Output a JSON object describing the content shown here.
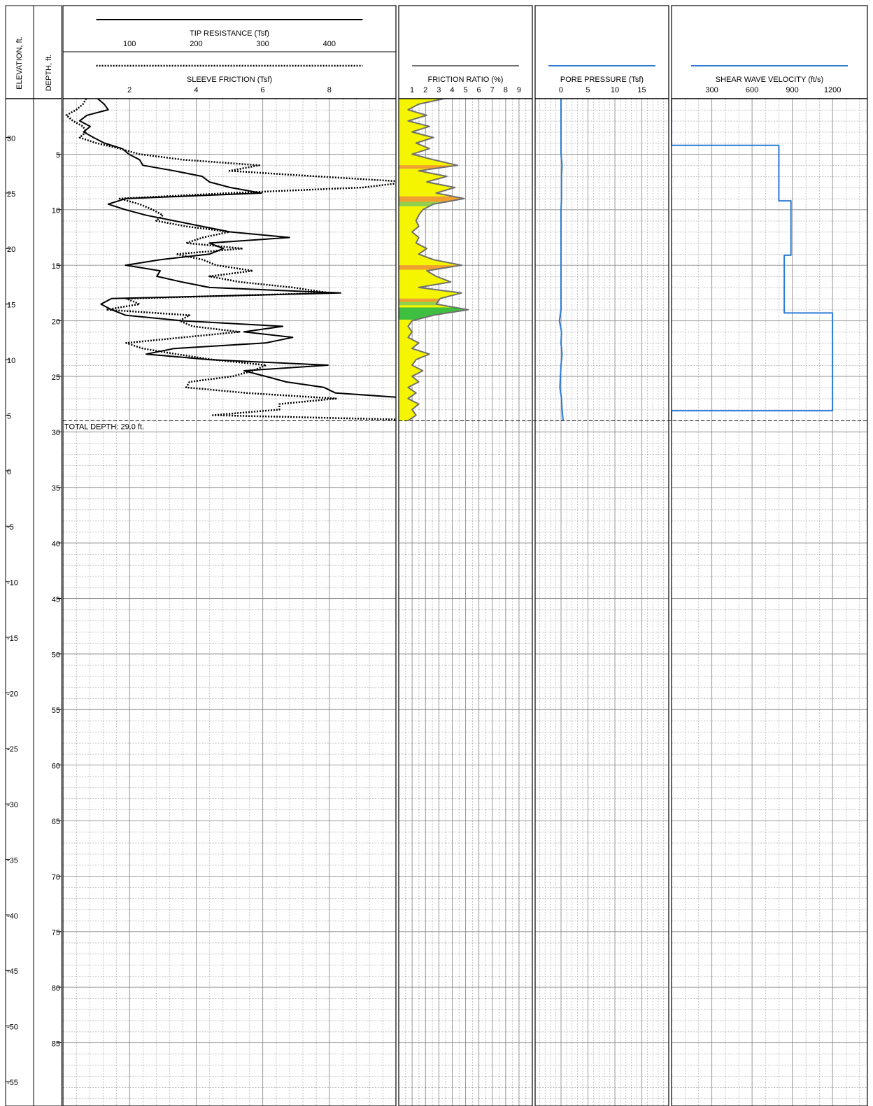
{
  "depth_axis": {
    "label": "DEPTH, ft.",
    "lim": [
      0,
      90.7
    ],
    "ticks": [
      5,
      10,
      15,
      20,
      25,
      30,
      35,
      40,
      45,
      50,
      55,
      60,
      65,
      70,
      75,
      80,
      85
    ]
  },
  "elevation_axis": {
    "label": "ELEVATION, ft.",
    "lim": [
      33.5,
      -57.2
    ],
    "ticks": [
      30,
      25,
      20,
      15,
      10,
      5,
      0,
      -5,
      -10,
      -15,
      -20,
      -25,
      -30,
      -35,
      -40,
      -45,
      -50,
      -55
    ]
  },
  "total_depth_label": "TOTAL DEPTH: 29.0 ft.",
  "total_depth": 29.0,
  "chart_data": [
    {
      "type": "line",
      "series": [
        {
          "name": "TIP RESISTANCE (Tsf)",
          "color": "#000000",
          "dash": "solid",
          "xlim": [
            0,
            500
          ],
          "xticks": [
            100,
            200,
            300,
            400
          ],
          "depth": [
            0,
            0.5,
            1,
            1.5,
            2,
            2.5,
            3,
            3.5,
            4,
            4.5,
            5,
            5.5,
            6,
            6.5,
            7,
            7.5,
            8,
            8.5,
            9,
            9.5,
            10,
            10.5,
            11,
            11.5,
            12,
            12.5,
            13,
            13.5,
            14,
            14.5,
            15,
            15.5,
            16,
            16.5,
            17,
            17.5,
            18,
            18.5,
            19,
            19.5,
            20,
            20.5,
            21,
            21.5,
            22,
            22.5,
            23,
            23.5,
            24,
            24.5,
            25,
            25.5,
            26,
            26.5,
            27,
            27.5,
            28,
            28.5,
            29
          ],
          "values": [
            52,
            62,
            68,
            36,
            25,
            41,
            31,
            46,
            62,
            89,
            99,
            115,
            120,
            167,
            209,
            220,
            251,
            298,
            94,
            68,
            94,
            125,
            167,
            209,
            251,
            340,
            220,
            241,
            220,
            146,
            94,
            146,
            141,
            178,
            220,
            417,
            73,
            57,
            73,
            94,
            178,
            330,
            272,
            345,
            304,
            167,
            125,
            220,
            398,
            272,
            304,
            335,
            392,
            409,
            530,
            560,
            540,
            520,
            510
          ]
        },
        {
          "name": "SLEEVE FRICTION (Tsf)",
          "color": "#000000",
          "dash": "dotted",
          "xlim": [
            0,
            10
          ],
          "xticks": [
            2,
            4,
            6,
            8
          ],
          "depth": [
            0,
            0.5,
            1,
            1.5,
            2,
            2.5,
            3,
            3.5,
            4,
            4.5,
            5,
            5.5,
            6,
            6.5,
            7,
            7.5,
            8,
            8.5,
            9,
            9.5,
            10,
            10.5,
            11,
            11.5,
            12,
            12.5,
            13,
            13.5,
            14,
            14.5,
            15,
            15.5,
            16,
            16.5,
            17,
            17.5,
            18,
            18.5,
            19,
            19.5,
            20,
            20.5,
            21,
            21.5,
            22,
            22.5,
            23,
            23.5,
            24,
            24.5,
            25,
            25.5,
            26,
            26.5,
            27,
            27.5,
            28,
            28.5,
            29
          ],
          "values": [
            0.7,
            0.6,
            0.4,
            0.1,
            0.3,
            0.6,
            0.7,
            0.5,
            1.0,
            1.7,
            2.3,
            3.6,
            5.9,
            5.0,
            7.6,
            10.4,
            9.0,
            5.0,
            1.7,
            2.3,
            2.7,
            3.0,
            2.8,
            3.7,
            5.0,
            4.2,
            3.7,
            5.4,
            3.4,
            4.2,
            4.6,
            5.7,
            4.4,
            5.3,
            6.9,
            8.0,
            1.9,
            2.3,
            1.3,
            3.8,
            3.5,
            3.9,
            5.3,
            3.6,
            1.9,
            2.4,
            3.4,
            4.5,
            6.1,
            5.7,
            5.1,
            3.8,
            3.7,
            5.5,
            8.2,
            6.5,
            6.5,
            4.5,
            11.6
          ]
        }
      ]
    },
    {
      "type": "area",
      "series": [
        {
          "name": "FRICTION RATIO (%)",
          "color": "#707070",
          "fill": "#f5f500",
          "dash": "solid",
          "xlim": [
            0,
            10
          ],
          "xticks": [
            1,
            2,
            3,
            4,
            5,
            6,
            7,
            8,
            9
          ],
          "depth": [
            0,
            0.5,
            1,
            1.5,
            2,
            2.5,
            3,
            3.5,
            4,
            4.5,
            5,
            5.5,
            6,
            6.5,
            7,
            7.5,
            8,
            8.5,
            9,
            9.5,
            10,
            10.5,
            11,
            11.5,
            12,
            12.5,
            13,
            13.5,
            14,
            14.5,
            15,
            15.5,
            16,
            16.5,
            17,
            17.5,
            18,
            18.5,
            19,
            19.5,
            20,
            20.5,
            21,
            21.5,
            22,
            22.5,
            23,
            23.5,
            24,
            24.5,
            25,
            25.5,
            26,
            26.5,
            27,
            27.5,
            28,
            28.5,
            29
          ],
          "values": [
            3.4,
            1.5,
            0.7,
            2.1,
            0.7,
            2.3,
            1.0,
            2.6,
            1.3,
            2.3,
            1.0,
            2.6,
            4.4,
            1.5,
            3.6,
            2.1,
            4.2,
            2.8,
            4.9,
            2.6,
            1.8,
            1.5,
            1.3,
            1.5,
            1.0,
            1.5,
            1.3,
            2.1,
            1.5,
            2.6,
            4.7,
            2.1,
            2.8,
            3.9,
            1.5,
            4.7,
            3.1,
            2.8,
            5.2,
            2.6,
            1.0,
            0.7,
            1.0,
            0.7,
            1.5,
            1.0,
            2.3,
            1.3,
            1.0,
            1.8,
            1.0,
            1.5,
            0.7,
            1.3,
            0.7,
            1.5,
            1.0,
            1.3,
            0.7
          ]
        }
      ],
      "bands": [
        {
          "top": 6.0,
          "bottom": 6.3,
          "color": "#f0a030"
        },
        {
          "top": 8.8,
          "bottom": 9.3,
          "color": "#f0a030"
        },
        {
          "top": 9.3,
          "bottom": 9.7,
          "color": "#8fd14f"
        },
        {
          "top": 15.0,
          "bottom": 15.4,
          "color": "#f0a030"
        },
        {
          "top": 18.0,
          "bottom": 18.3,
          "color": "#f0a030"
        },
        {
          "top": 18.3,
          "bottom": 18.6,
          "color": "#8fd14f"
        },
        {
          "top": 18.8,
          "bottom": 19.9,
          "color": "#3fbf3f"
        }
      ]
    },
    {
      "type": "line",
      "series": [
        {
          "name": "PORE PRESSURE (Tsf)",
          "color": "#2b7bd6",
          "dash": "solid",
          "xlim": [
            -4.8,
            20
          ],
          "xticks": [
            0,
            5,
            10,
            15
          ],
          "depth": [
            0,
            1,
            2,
            3,
            4,
            5,
            6,
            7,
            8,
            9,
            10,
            11,
            12,
            13,
            14,
            15,
            16,
            17,
            18,
            19,
            20,
            21,
            22,
            23,
            24,
            25,
            26,
            27,
            28,
            29
          ],
          "values": [
            0,
            0,
            0,
            0,
            0,
            0,
            0.2,
            0.1,
            0.1,
            0.1,
            0,
            0,
            0,
            0,
            0,
            0,
            0,
            0,
            0,
            0,
            -0.3,
            0.1,
            0,
            0.2,
            0,
            -0.1,
            -0.2,
            0.1,
            0.2,
            0.4
          ]
        }
      ]
    },
    {
      "type": "line",
      "series": [
        {
          "name": "SHEAR WAVE VELOCITY (ft/s)",
          "color": "#2b7bd6",
          "dash": "solid",
          "xlim": [
            0,
            1460
          ],
          "xticks": [
            300,
            600,
            900,
            1200
          ],
          "depth": [
            0,
            4.2,
            4.2,
            9.2,
            9.2,
            14.1,
            14.1,
            19.3,
            19.3,
            28.1,
            28.1,
            29
          ],
          "values": [
            0,
            0,
            800,
            800,
            890,
            890,
            840,
            840,
            1200,
            1200,
            0,
            0
          ]
        }
      ]
    }
  ]
}
